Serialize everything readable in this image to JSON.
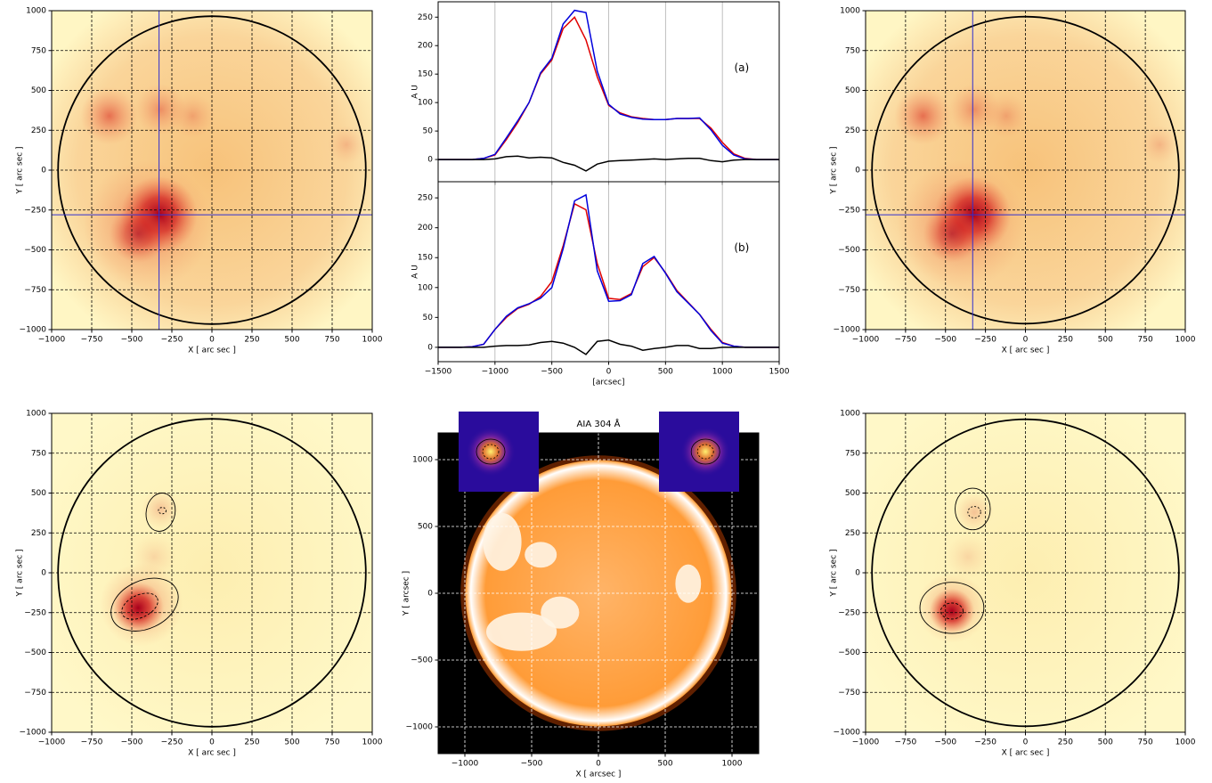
{
  "chart_data": [
    {
      "type": "heatmap",
      "xlabel": "X [ arc sec ]",
      "ylabel": "Y [ arc sec ]",
      "xlim": [
        -1000,
        1000
      ],
      "ylim": [
        -1000,
        1000
      ],
      "xticks": [
        {
          "value": -1000,
          "label": "−1000"
        },
        {
          "value": -750,
          "label": "−750"
        },
        {
          "value": -500,
          "label": "−500"
        },
        {
          "value": -250,
          "label": "−250"
        },
        0,
        250,
        500,
        750,
        1000
      ],
      "yticks": [
        {
          "value": -1000,
          "label": "−1000"
        },
        {
          "value": -750,
          "label": "−750"
        },
        {
          "value": -500,
          "label": "−500"
        },
        {
          "value": -250,
          "label": "−250"
        },
        0,
        250,
        500,
        750,
        1000
      ],
      "grid": true,
      "grid_color": "#000000",
      "grid_dashed": true,
      "limb_radius": 960,
      "crosshair": {
        "x": -330,
        "y": -280,
        "color": "#3030d0"
      }
    },
    {
      "type": "line",
      "label": "(a)",
      "ylabel": "A U",
      "xlim": [
        -1500,
        1500
      ],
      "ylim": [
        -39,
        277
      ],
      "xticks": [
        -1000,
        -500,
        0,
        500,
        1000
      ],
      "yticks": [
        0,
        50,
        100,
        150,
        200,
        250
      ],
      "grid": true,
      "grid_color": "#b0b0b0",
      "grid_dashed": false,
      "x": [
        -1500,
        -1400,
        -1300,
        -1200,
        -1100,
        -1000,
        -900,
        -800,
        -700,
        -600,
        -500,
        -400,
        -300,
        -200,
        -100,
        0,
        100,
        200,
        300,
        400,
        500,
        600,
        700,
        800,
        900,
        1000,
        1100,
        1200,
        1300,
        1400,
        1500
      ],
      "series": [
        {
          "color": "#e00000",
          "values": [
            0,
            0,
            0,
            0,
            2,
            8,
            35,
            65,
            100,
            150,
            175,
            230,
            250,
            210,
            145,
            95,
            82,
            75,
            72,
            70,
            70,
            72,
            72,
            72,
            55,
            30,
            10,
            2,
            0,
            0,
            0
          ]
        },
        {
          "color": "#0000dd",
          "values": [
            0,
            0,
            0,
            0,
            2,
            9,
            38,
            68,
            100,
            152,
            178,
            238,
            262,
            258,
            155,
            97,
            80,
            74,
            71,
            70,
            70,
            72,
            72,
            73,
            52,
            25,
            8,
            1,
            0,
            0,
            0
          ]
        },
        {
          "color": "#000000",
          "values": [
            0,
            0,
            0,
            0,
            0,
            1,
            5,
            6,
            3,
            4,
            3,
            -5,
            -10,
            -20,
            -8,
            -3,
            -2,
            -1,
            0,
            1,
            0,
            1,
            2,
            2,
            -2,
            -4,
            -1,
            0,
            0,
            0,
            0
          ]
        }
      ]
    },
    {
      "type": "line",
      "label": "(b)",
      "ylabel": "A U",
      "xlabel": "[arcsec]",
      "xlim": [
        -1500,
        1500
      ],
      "ylim": [
        -24,
        277
      ],
      "xticks": [
        {
          "value": -1500,
          "label": "−1500"
        },
        {
          "value": -1000,
          "label": "−1000"
        },
        {
          "value": -500,
          "label": "−500"
        },
        0,
        500,
        1000,
        1500
      ],
      "yticks": [
        0,
        50,
        100,
        150,
        200,
        250
      ],
      "grid": true,
      "grid_color": "#b0b0b0",
      "grid_dashed": false,
      "x": [
        -1500,
        -1400,
        -1300,
        -1200,
        -1100,
        -1000,
        -900,
        -800,
        -700,
        -600,
        -500,
        -400,
        -300,
        -200,
        -100,
        0,
        100,
        200,
        300,
        400,
        500,
        600,
        700,
        800,
        900,
        1000,
        1100,
        1200,
        1300,
        1400,
        1500
      ],
      "series": [
        {
          "color": "#e00000",
          "values": [
            0,
            0,
            0,
            1,
            5,
            30,
            50,
            65,
            72,
            85,
            110,
            170,
            240,
            230,
            140,
            82,
            80,
            90,
            135,
            150,
            125,
            95,
            75,
            55,
            30,
            8,
            2,
            0,
            0,
            0,
            0
          ]
        },
        {
          "color": "#0000dd",
          "values": [
            0,
            0,
            0,
            1,
            5,
            30,
            52,
            66,
            73,
            82,
            100,
            165,
            245,
            255,
            128,
            77,
            78,
            88,
            140,
            152,
            124,
            93,
            74,
            55,
            28,
            7,
            2,
            0,
            0,
            0,
            0
          ]
        },
        {
          "color": "#000000",
          "values": [
            0,
            0,
            0,
            0,
            0,
            2,
            3,
            3,
            4,
            8,
            10,
            7,
            0,
            -12,
            10,
            12,
            5,
            2,
            -5,
            -2,
            0,
            3,
            3,
            -2,
            -2,
            0,
            0,
            0,
            0,
            0,
            0
          ]
        }
      ]
    },
    {
      "type": "heatmap",
      "xlabel": "X [ arc sec ]",
      "ylabel": "Y [ arc sec ]",
      "xlim": [
        -1000,
        1000
      ],
      "ylim": [
        -1000,
        1000
      ],
      "xticks": [
        {
          "value": -1000,
          "label": "−1000"
        },
        {
          "value": -750,
          "label": "−750"
        },
        {
          "value": -500,
          "label": "−500"
        },
        {
          "value": -250,
          "label": "−250"
        },
        0,
        250,
        500,
        750,
        1000
      ],
      "yticks": [
        {
          "value": -1000,
          "label": "−1000"
        },
        {
          "value": -750,
          "label": "−750"
        },
        {
          "value": -500,
          "label": "−500"
        },
        {
          "value": -250,
          "label": "−250"
        },
        0,
        250,
        500,
        750,
        1000
      ],
      "grid": true,
      "grid_color": "#000000",
      "grid_dashed": true,
      "limb_radius": 960,
      "crosshair": {
        "x": -330,
        "y": -280,
        "color": "#3030d0"
      }
    },
    {
      "type": "heatmap",
      "xlabel": "X [ arc sec ]",
      "ylabel": "Y [ arc sec ]",
      "xlim": [
        -1000,
        1000
      ],
      "ylim": [
        -1000,
        1000
      ],
      "xticks": [
        {
          "value": -1000,
          "label": "−1000"
        },
        {
          "value": -750,
          "label": "−750"
        },
        {
          "value": -500,
          "label": "−500"
        },
        {
          "value": -250,
          "label": "−250"
        },
        0,
        250,
        500,
        750,
        1000
      ],
      "yticks": [
        {
          "value": -1000,
          "label": "−1000"
        },
        {
          "value": -750,
          "label": "−750"
        },
        {
          "value": -500,
          "label": "−500"
        },
        {
          "value": -250,
          "label": "−250"
        },
        0,
        250,
        500,
        750,
        1000
      ],
      "grid": true,
      "grid_color": "#000000",
      "grid_dashed": true,
      "limb_radius": 960
    },
    {
      "type": "image",
      "title": "AIA 304 Å",
      "xlabel": "X [ arcsec ]",
      "ylabel": "Y [ arcsec ]",
      "xlim": [
        -1200,
        1200
      ],
      "ylim": [
        -1200,
        1200
      ],
      "xticks": [
        {
          "value": -1000,
          "label": "−1000"
        },
        {
          "value": -500,
          "label": "−500"
        },
        0,
        500,
        1000
      ],
      "yticks": [
        {
          "value": -1000,
          "label": "−1000"
        },
        {
          "value": -500,
          "label": "−500"
        },
        0,
        500,
        1000
      ],
      "grid": true,
      "grid_color": "#ffffff",
      "grid_dashed": true
    },
    {
      "type": "heatmap",
      "xlabel": "X [ arc sec ]",
      "ylabel": "Y [ arc sec ]",
      "xlim": [
        -1000,
        1000
      ],
      "ylim": [
        -1000,
        1000
      ],
      "xticks": [
        {
          "value": -1000,
          "label": "−1000"
        },
        {
          "value": -750,
          "label": "−750"
        },
        {
          "value": -500,
          "label": "−500"
        },
        {
          "value": -250,
          "label": "−250"
        },
        0,
        250,
        500,
        750,
        1000
      ],
      "yticks": [
        {
          "value": -1000,
          "label": "−1000"
        },
        {
          "value": -750,
          "label": "−750"
        },
        {
          "value": -500,
          "label": "−500"
        },
        {
          "value": -250,
          "label": "−250"
        },
        0,
        250,
        500,
        750,
        1000
      ],
      "grid": true,
      "grid_color": "#000000",
      "grid_dashed": true,
      "limb_radius": 960
    }
  ]
}
